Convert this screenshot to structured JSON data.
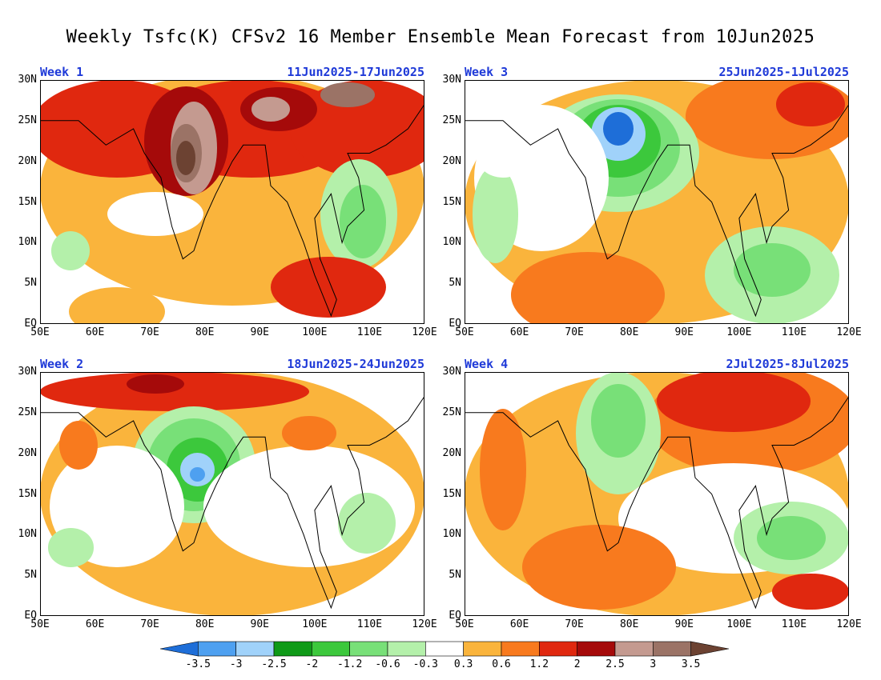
{
  "title": "Weekly Tsfc(K) CFSv2 16 Member Ensemble Mean Forecast from 10Jun2025",
  "y_ticks": [
    "30N",
    "25N",
    "20N",
    "15N",
    "10N",
    "5N",
    "EQ"
  ],
  "x_ticks": [
    "50E",
    "60E",
    "70E",
    "80E",
    "90E",
    "100E",
    "110E",
    "120E"
  ],
  "panels": [
    {
      "week": "Week 1",
      "dates": "11Jun2025-17Jun2025"
    },
    {
      "week": "Week 3",
      "dates": "25Jun2025-1Jul2025"
    },
    {
      "week": "Week 2",
      "dates": "18Jun2025-24Jun2025"
    },
    {
      "week": "Week 4",
      "dates": "2Jul2025-8Jul2025"
    }
  ],
  "legend": {
    "labels": [
      "-3.5",
      "-3",
      "-2.5",
      "-2",
      "-1.2",
      "-0.6",
      "-0.3",
      "0.3",
      "0.6",
      "1.2",
      "2",
      "2.5",
      "3",
      "3.5"
    ],
    "colors": [
      "#1e6ed8",
      "#4ea0f0",
      "#a0d2fa",
      "#0f9a18",
      "#3cc83c",
      "#78e078",
      "#b4f0aa",
      "#ffffff",
      "#fab43c",
      "#f87a1e",
      "#e0280f",
      "#a50a0a",
      "#c49a90",
      "#9b7366",
      "#6c4232"
    ],
    "units": "K"
  }
}
